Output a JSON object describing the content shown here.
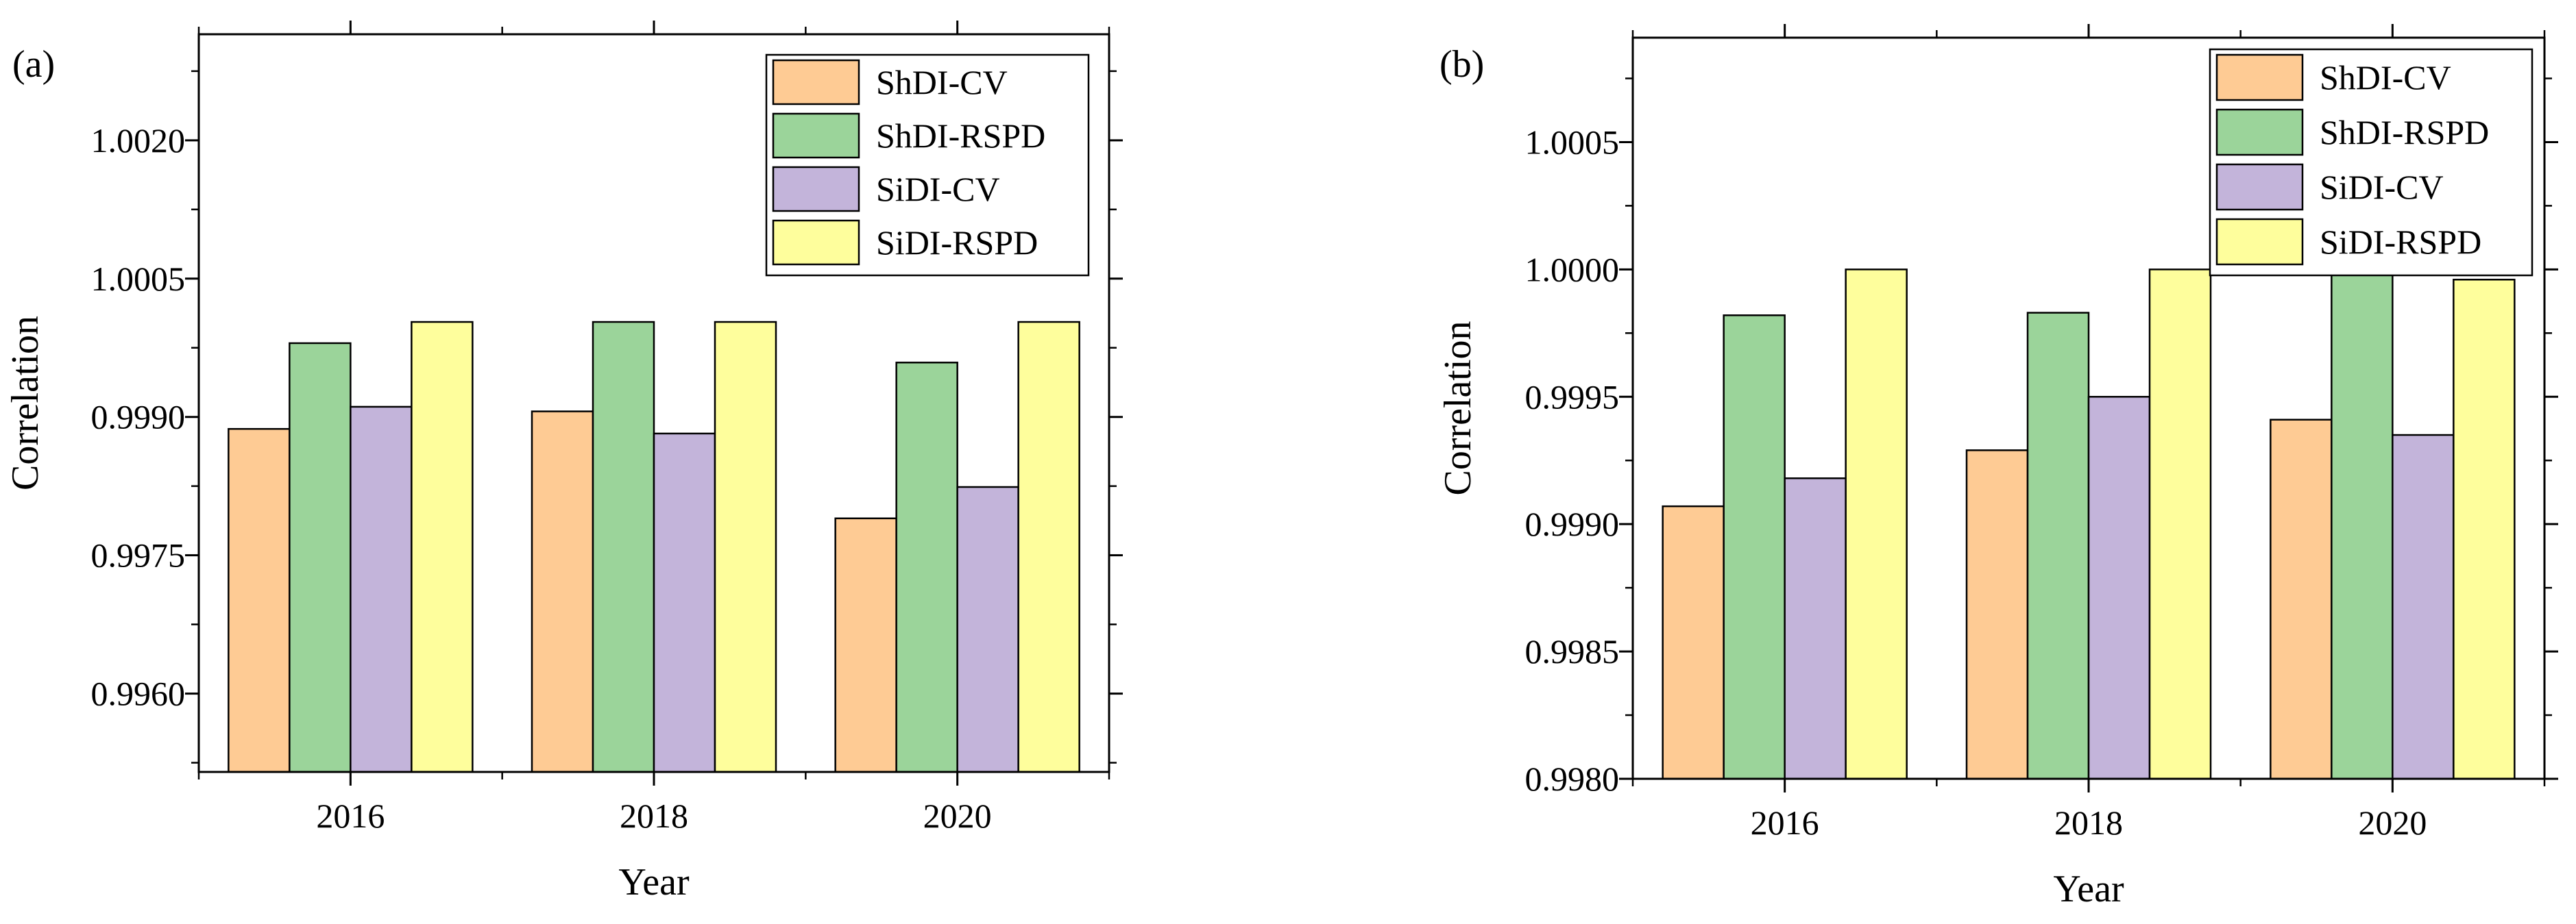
{
  "chart_data": [
    {
      "type": "bar",
      "panel_label": "(a)",
      "title": "",
      "xlabel": "Year",
      "ylabel": "Correlation",
      "categories": [
        "2016",
        "2018",
        "2020"
      ],
      "ylim": [
        0.99515,
        1.00315
      ],
      "yticks": [
        "0.9960",
        "0.9975",
        "0.9990",
        "1.0005",
        "1.0020"
      ],
      "ytick_values": [
        0.996,
        0.9975,
        0.999,
        1.0005,
        1.002
      ],
      "grid": false,
      "legend_position": "top-right",
      "series": [
        {
          "name": "ShDI-CV",
          "color": "#FECB94",
          "values": [
            0.99887,
            0.99906,
            0.9979
          ]
        },
        {
          "name": "ShDI-RSPD",
          "color": "#9BD49A",
          "values": [
            0.9998,
            1.00003,
            0.99959
          ]
        },
        {
          "name": "SiDI-CV",
          "color": "#C3B4DA",
          "values": [
            0.99911,
            0.99882,
            0.99824
          ]
        },
        {
          "name": "SiDI-RSPD",
          "color": "#FEFE9C",
          "values": [
            1.00003,
            1.00003,
            1.00003
          ]
        }
      ]
    },
    {
      "type": "bar",
      "panel_label": "(b)",
      "title": "",
      "xlabel": "Year",
      "ylabel": "Correlation",
      "categories": [
        "2016",
        "2018",
        "2020"
      ],
      "ylim": [
        0.998,
        1.00091
      ],
      "yticks": [
        "0.9980",
        "0.9985",
        "0.9990",
        "0.9995",
        "1.0000",
        "1.0005"
      ],
      "ytick_values": [
        0.998,
        0.9985,
        0.999,
        0.9995,
        1.0,
        1.0005
      ],
      "grid": false,
      "legend_position": "top-right",
      "series": [
        {
          "name": "ShDI-CV",
          "color": "#FECB94",
          "values": [
            0.99907,
            0.99929,
            0.99941
          ]
        },
        {
          "name": "ShDI-RSPD",
          "color": "#9BD49A",
          "values": [
            0.99982,
            0.99983,
            1.0
          ]
        },
        {
          "name": "SiDI-CV",
          "color": "#C3B4DA",
          "values": [
            0.99918,
            0.9995,
            0.99935
          ]
        },
        {
          "name": "SiDI-RSPD",
          "color": "#FEFE9C",
          "values": [
            1.0,
            1.0,
            0.99996
          ]
        }
      ]
    }
  ]
}
